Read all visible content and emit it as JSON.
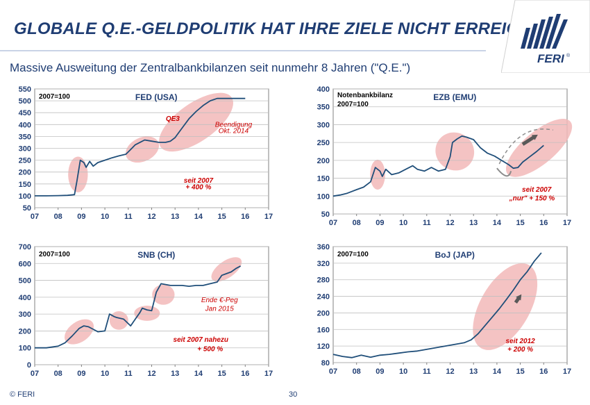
{
  "page": {
    "title": "GLOBALE Q.E.-GELDPOLITIK HAT IHRE ZIELE NICHT ERREICHT...",
    "subtitle": "Massive Ausweitung der Zentralbankbilanzen seit nunmehr 8 Jahren (\"Q.E.\")",
    "logo_text": "FERI",
    "copyright": "© FERI",
    "page_number": "30"
  },
  "colors": {
    "title": "#1f3d73",
    "line": "#1f4e79",
    "highlight": "#f2b8b8",
    "annotation": "#cc0000",
    "grid": "#bfbfbf"
  },
  "chart_data": [
    {
      "id": "fed",
      "type": "line",
      "title": "FED (USA)",
      "base_label": "2007=100",
      "xlabel": "",
      "ylabel": "",
      "xlim": [
        7,
        17
      ],
      "ylim": [
        50,
        550
      ],
      "yticks": [
        50,
        100,
        150,
        200,
        250,
        300,
        350,
        400,
        450,
        500,
        550
      ],
      "xtick_labels": [
        "07",
        "08",
        "09",
        "10",
        "11",
        "12",
        "13",
        "14",
        "15",
        "16",
        "17"
      ],
      "series": [
        {
          "name": "FED (USA)",
          "x": [
            7,
            7.5,
            8,
            8.4,
            8.7,
            8.8,
            8.95,
            9.1,
            9.2,
            9.35,
            9.5,
            9.7,
            10,
            10.3,
            10.6,
            10.9,
            11.1,
            11.3,
            11.5,
            11.7,
            12,
            12.3,
            12.6,
            12.8,
            13,
            13.3,
            13.6,
            13.9,
            14.2,
            14.5,
            14.8,
            15,
            15.3,
            15.6,
            16
          ],
          "y": [
            100,
            100,
            101,
            102,
            105,
            160,
            250,
            240,
            220,
            245,
            225,
            240,
            250,
            260,
            268,
            275,
            295,
            315,
            325,
            335,
            330,
            325,
            325,
            330,
            345,
            385,
            425,
            455,
            480,
            500,
            510,
            510,
            510,
            510,
            510
          ]
        }
      ],
      "highlights": [
        [
          8.85,
          190,
          0.42,
          75
        ],
        [
          11.6,
          295,
          0.75,
          50
        ],
        [
          13.9,
          410,
          1.85,
          80
        ]
      ],
      "annotations": [
        {
          "text": "QE3",
          "x": 12.9,
          "y": 415,
          "color": "#cc0000",
          "bold": true
        },
        {
          "text": "Beendigung",
          "x": 15.5,
          "y": 390,
          "color": "#cc0000"
        },
        {
          "text": "Okt. 2014",
          "x": 15.5,
          "y": 365,
          "color": "#cc0000"
        },
        {
          "text": "seit 2007",
          "x": 14.0,
          "y": 155,
          "color": "#cc0000",
          "bold": true
        },
        {
          "text": "+ 400 %",
          "x": 14.0,
          "y": 128,
          "color": "#cc0000",
          "bold": true
        }
      ]
    },
    {
      "id": "ezb",
      "type": "line",
      "title": "EZB (EMU)",
      "base_label": "2007=100",
      "extra_label": "Notenbankbilanz",
      "xlabel": "",
      "ylabel": "",
      "xlim": [
        7,
        17
      ],
      "ylim": [
        50,
        400
      ],
      "yticks": [
        50,
        100,
        150,
        200,
        250,
        300,
        350,
        400
      ],
      "xtick_labels": [
        "07",
        "08",
        "09",
        "10",
        "11",
        "12",
        "13",
        "14",
        "15",
        "16",
        "17"
      ],
      "series": [
        {
          "name": "EZB (EMU)",
          "x": [
            7,
            7.3,
            7.6,
            8,
            8.3,
            8.6,
            8.8,
            9.0,
            9.1,
            9.25,
            9.5,
            9.8,
            10.1,
            10.4,
            10.6,
            10.9,
            11.2,
            11.5,
            11.8,
            12.0,
            12.1,
            12.3,
            12.5,
            12.7,
            13.0,
            13.3,
            13.6,
            13.9,
            14.2,
            14.5,
            14.7,
            14.9,
            15.1,
            15.4,
            15.7,
            16
          ],
          "y": [
            100,
            103,
            108,
            118,
            125,
            140,
            180,
            170,
            155,
            175,
            160,
            165,
            175,
            185,
            175,
            170,
            180,
            170,
            175,
            210,
            250,
            260,
            268,
            265,
            258,
            235,
            220,
            212,
            200,
            188,
            178,
            180,
            195,
            210,
            225,
            242
          ]
        }
      ],
      "highlights": [
        [
          8.9,
          160,
          0.32,
          42
        ],
        [
          12.2,
          225,
          0.8,
          55
        ],
        [
          15.8,
          235,
          1.75,
          45
        ]
      ],
      "arrow_dashed": {
        "from": [
          14.1,
          190
        ],
        "to": [
          16.4,
          285
        ]
      },
      "arrow_solid": {
        "from": [
          15.1,
          245
        ],
        "to": [
          15.75,
          272
        ]
      },
      "arrow_curve": {
        "from": [
          14.6,
          205
        ],
        "to": [
          14.0,
          178
        ]
      },
      "annotations": [
        {
          "text": "seit 2007",
          "x": 15.7,
          "y": 112,
          "color": "#cc0000",
          "bold": true
        },
        {
          "text": "„nur\" + 150 %",
          "x": 15.5,
          "y": 88,
          "color": "#cc0000",
          "bold": true
        }
      ]
    },
    {
      "id": "snb",
      "type": "line",
      "title": "SNB (CH)",
      "base_label": "2007=100",
      "xlabel": "",
      "ylabel": "",
      "xlim": [
        7,
        17
      ],
      "ylim": [
        0,
        700
      ],
      "yticks": [
        0,
        100,
        200,
        300,
        400,
        500,
        600,
        700
      ],
      "xtick_labels": [
        "07",
        "08",
        "09",
        "10",
        "11",
        "12",
        "13",
        "14",
        "15",
        "16",
        "17"
      ],
      "series": [
        {
          "name": "SNB (CH)",
          "x": [
            7,
            7.5,
            8,
            8.3,
            8.6,
            8.9,
            9.1,
            9.3,
            9.5,
            9.7,
            10,
            10.2,
            10.4,
            10.5,
            10.8,
            11.1,
            11.3,
            11.5,
            11.6,
            11.8,
            12,
            12.2,
            12.4,
            12.6,
            12.8,
            13.0,
            13.3,
            13.6,
            13.9,
            14.2,
            14.5,
            14.8,
            15.0,
            15.2,
            15.4,
            15.6,
            15.8
          ],
          "y": [
            100,
            100,
            110,
            130,
            170,
            215,
            230,
            225,
            210,
            195,
            200,
            300,
            285,
            280,
            270,
            230,
            270,
            310,
            335,
            325,
            320,
            430,
            480,
            475,
            470,
            470,
            470,
            465,
            470,
            470,
            480,
            490,
            530,
            540,
            550,
            570,
            585
          ]
        }
      ],
      "highlights": [
        [
          8.9,
          195,
          0.7,
          60
        ],
        [
          10.6,
          262,
          0.4,
          55
        ],
        [
          11.8,
          305,
          0.55,
          45
        ],
        [
          12.5,
          415,
          0.48,
          60
        ],
        [
          15.2,
          565,
          0.75,
          50
        ]
      ],
      "annotations": [
        {
          "text": "Ende €-Peg",
          "x": 14.9,
          "y": 370,
          "color": "#cc0000"
        },
        {
          "text": "Jan 2015",
          "x": 14.9,
          "y": 320,
          "color": "#cc0000"
        },
        {
          "text": "seit 2007 nahezu",
          "x": 14.1,
          "y": 135,
          "color": "#cc0000",
          "bold": true
        },
        {
          "text": "+ 500 %",
          "x": 14.5,
          "y": 80,
          "color": "#cc0000",
          "bold": true
        }
      ]
    },
    {
      "id": "boj",
      "type": "line",
      "title": "BoJ  (JAP)",
      "base_label": "2007=100",
      "xlabel": "",
      "ylabel": "",
      "xlim": [
        7,
        17
      ],
      "ylim": [
        80,
        360
      ],
      "yticks": [
        80,
        120,
        160,
        200,
        240,
        280,
        320,
        360
      ],
      "xtick_labels": [
        "07",
        "08",
        "09",
        "10",
        "11",
        "12",
        "13",
        "14",
        "15",
        "16",
        "17"
      ],
      "series": [
        {
          "name": "BoJ (JAP)",
          "x": [
            7,
            7.4,
            7.8,
            8.2,
            8.6,
            9,
            9.4,
            9.8,
            10.2,
            10.6,
            11,
            11.4,
            11.8,
            12.2,
            12.6,
            12.9,
            13.2,
            13.5,
            13.8,
            14.1,
            14.4,
            14.7,
            15.0,
            15.3,
            15.6,
            15.9
          ],
          "y": [
            100,
            95,
            92,
            98,
            93,
            98,
            100,
            103,
            106,
            108,
            112,
            116,
            120,
            124,
            128,
            135,
            150,
            170,
            190,
            210,
            232,
            255,
            280,
            300,
            325,
            345
          ]
        }
      ],
      "highlights": [
        [
          14.35,
          215,
          2.05,
          60
        ]
      ],
      "arrow_solid": {
        "from": [
          14.8,
          225
        ],
        "to": [
          15.05,
          245
        ]
      },
      "annotations": [
        {
          "text": "seit 2012",
          "x": 15.0,
          "y": 127,
          "color": "#cc0000",
          "bold": true
        },
        {
          "text": "+ 200 %",
          "x": 15.0,
          "y": 107,
          "color": "#cc0000",
          "bold": true
        }
      ]
    }
  ]
}
